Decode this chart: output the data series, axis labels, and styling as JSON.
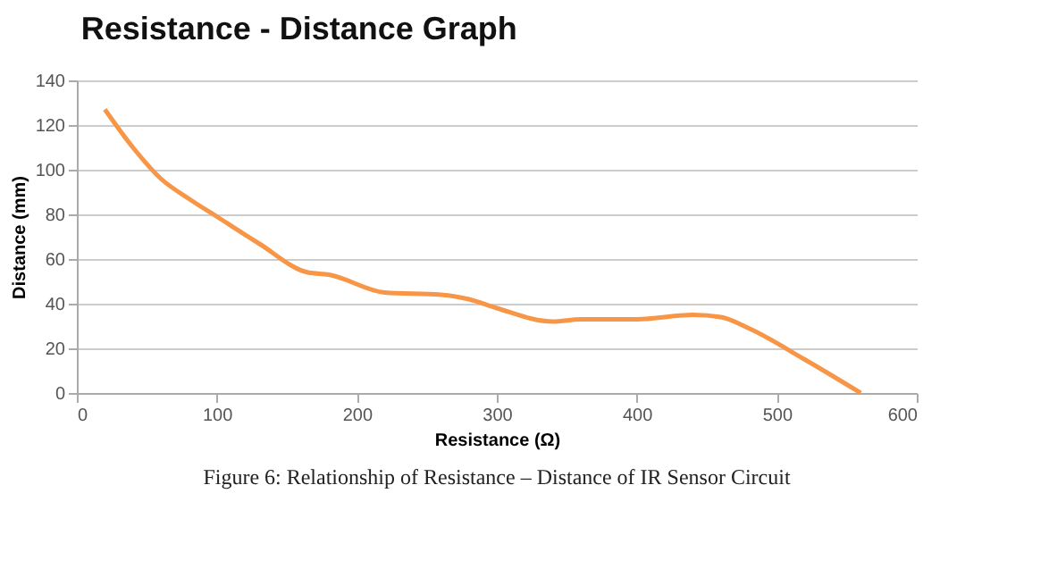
{
  "chart_data": {
    "type": "line",
    "title": "Resistance - Distance Graph",
    "xlabel": "Resistance (Ω)",
    "ylabel": "Distance (mm)",
    "x": [
      20,
      40,
      60,
      80,
      100,
      130,
      165,
      180,
      220,
      260,
      280,
      300,
      340,
      360,
      400,
      440,
      460,
      480,
      520,
      560
    ],
    "series": [
      {
        "color": "#f79646",
        "values": [
          127,
          110,
          96,
          87,
          79,
          67,
          54,
          53,
          45,
          44,
          42,
          38,
          32,
          33,
          33,
          35,
          34,
          29,
          15,
          0
        ]
      }
    ],
    "xlim": [
      0,
      600
    ],
    "xticks": [
      0,
      100,
      200,
      300,
      400,
      500,
      600
    ],
    "ylim": [
      0,
      140
    ],
    "yticks": [
      0,
      20,
      40,
      60,
      80,
      100,
      120,
      140
    ],
    "grid": "y",
    "marker": "none",
    "line_style": "solid",
    "annotations": [
      "Figure 6: Relationship of Resistance – Distance of IR Sensor Circuit"
    ]
  }
}
